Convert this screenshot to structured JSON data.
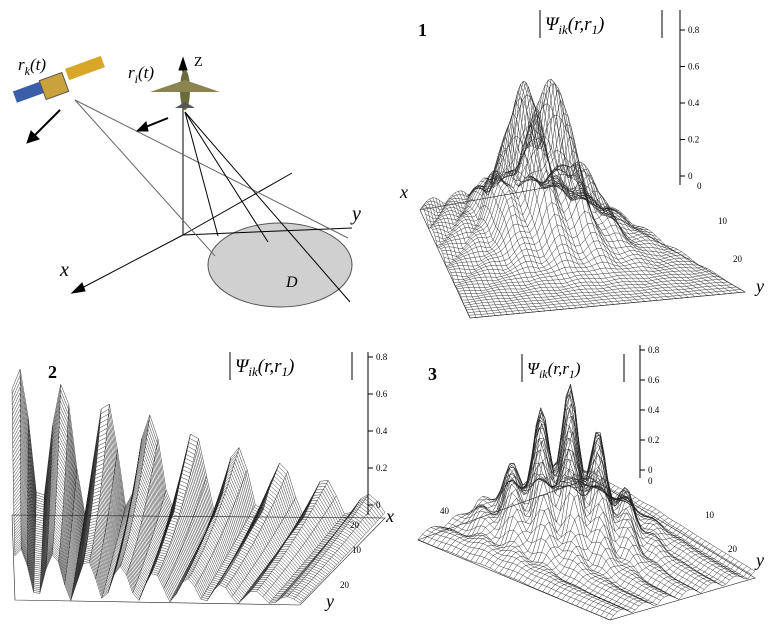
{
  "diagram": {
    "satellite_label": {
      "base": "r",
      "sub": "k",
      "arg": "(t)"
    },
    "aircraft_label": {
      "base": "r",
      "sub": "i",
      "arg": "(t)"
    },
    "axes": {
      "z": "Z",
      "y": "y",
      "x": "x"
    },
    "area": "D"
  },
  "plots": [
    {
      "number": "1",
      "zlabel": {
        "base": "Ψ",
        "sub": "ik",
        "arg": "(r,r",
        "arg_sub": "1",
        "close": ")"
      },
      "zticks": [
        0,
        0.2,
        0.4,
        0.6,
        0.8
      ],
      "x": "x",
      "y": "y",
      "yticks": [
        0,
        10,
        20
      ]
    },
    {
      "number": "2",
      "zlabel": {
        "base": "Ψ",
        "sub": "ik",
        "arg": "(r,r",
        "arg_sub": "1",
        "close": ")"
      },
      "zticks": [
        0,
        0.2,
        0.4,
        0.6,
        0.8
      ],
      "x": "x",
      "y": "y",
      "xticks": [
        20
      ],
      "yticks": [
        10,
        20
      ]
    },
    {
      "number": "3",
      "zlabel": {
        "base": "Ψ",
        "sub": "ik",
        "arg": "(r,r",
        "arg_sub": "1",
        "close": ")"
      },
      "zticks": [
        0,
        0.2,
        0.4,
        0.6,
        0.8
      ],
      "y": "y",
      "xticks": [
        0,
        40
      ],
      "yticks": [
        10,
        20
      ]
    }
  ]
}
